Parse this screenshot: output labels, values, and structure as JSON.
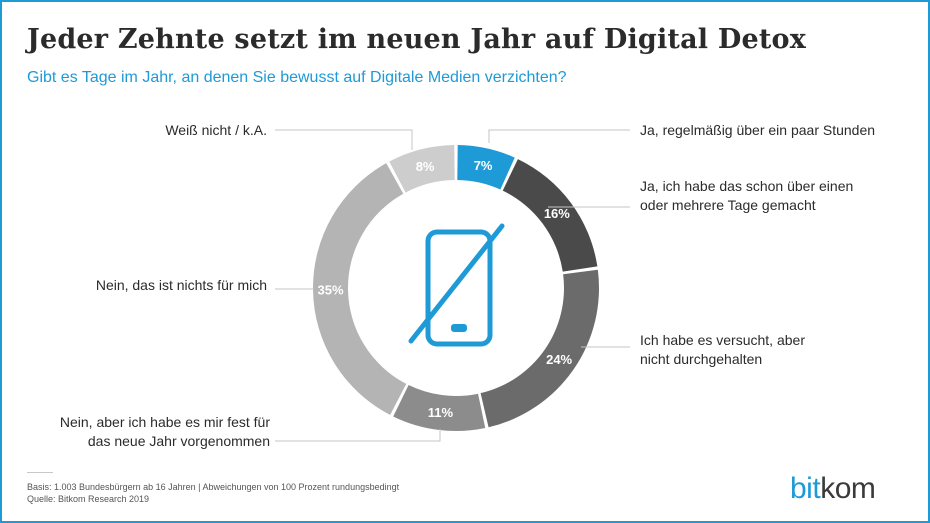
{
  "header": {
    "title": "Jeder Zehnte setzt im neuen Jahr auf Digital Detox",
    "subtitle": "Gibt es Tage im Jahr, an denen Sie bewusst auf Digitale Medien verzichten?"
  },
  "chart_data": {
    "type": "pie",
    "variant": "donut",
    "title": "Jeder Zehnte setzt im neuen Jahr auf Digital Detox",
    "subtitle": "Gibt es Tage im Jahr, an denen Sie bewusst auf Digitale Medien verzichten?",
    "unit": "%",
    "center_icon": "smartphone-crossed-out-icon",
    "slices": [
      {
        "label": "Ja, regelmäßig über ein paar Stunden",
        "value": 7,
        "value_label": "7%",
        "color": "#1e9ad6"
      },
      {
        "label": "Ja, ich habe das schon über einen oder mehrere Tage gemacht",
        "value": 16,
        "value_label": "16%",
        "color": "#4a4a4a"
      },
      {
        "label": "Ich habe es versucht, aber nicht durchgehalten",
        "value": 24,
        "value_label": "24%",
        "color": "#6b6b6b"
      },
      {
        "label": "Nein, aber ich habe es mir fest für das neue Jahr vorgenommen",
        "value": 11,
        "value_label": "11%",
        "color": "#8c8c8c"
      },
      {
        "label": "Nein, das ist nichts für mich",
        "value": 35,
        "value_label": "35%",
        "color": "#b4b4b4"
      },
      {
        "label": "Weiß nicht / k.A.",
        "value": 8,
        "value_label": "8%",
        "color": "#cdcdcd"
      }
    ]
  },
  "labels": {
    "right": [
      [
        "Ja, regelmäßig über ein paar Stunden"
      ],
      [
        "Ja, ich habe das schon über einen",
        "oder mehrere Tage gemacht"
      ],
      [
        "Ich habe es versucht, aber",
        "nicht durchgehalten"
      ]
    ],
    "left": [
      [
        "Weiß nicht / k.A."
      ],
      [
        "Nein, das ist nichts für mich"
      ],
      [
        "Nein, aber ich habe es mir fest für",
        "das neue Jahr vorgenommen"
      ]
    ]
  },
  "footer": {
    "line1": "Basis: 1.003 Bundesbürgern ab 16 Jahren | Abweichungen von 100 Prozent rundungsbedingt",
    "line2": "Quelle: Bitkom Research 2019"
  },
  "logo": {
    "part1": "bit",
    "part2": "kom"
  },
  "colors": {
    "accent": "#1e9ad6",
    "text": "#2b2b2b",
    "frame": "#1e9ad6"
  }
}
